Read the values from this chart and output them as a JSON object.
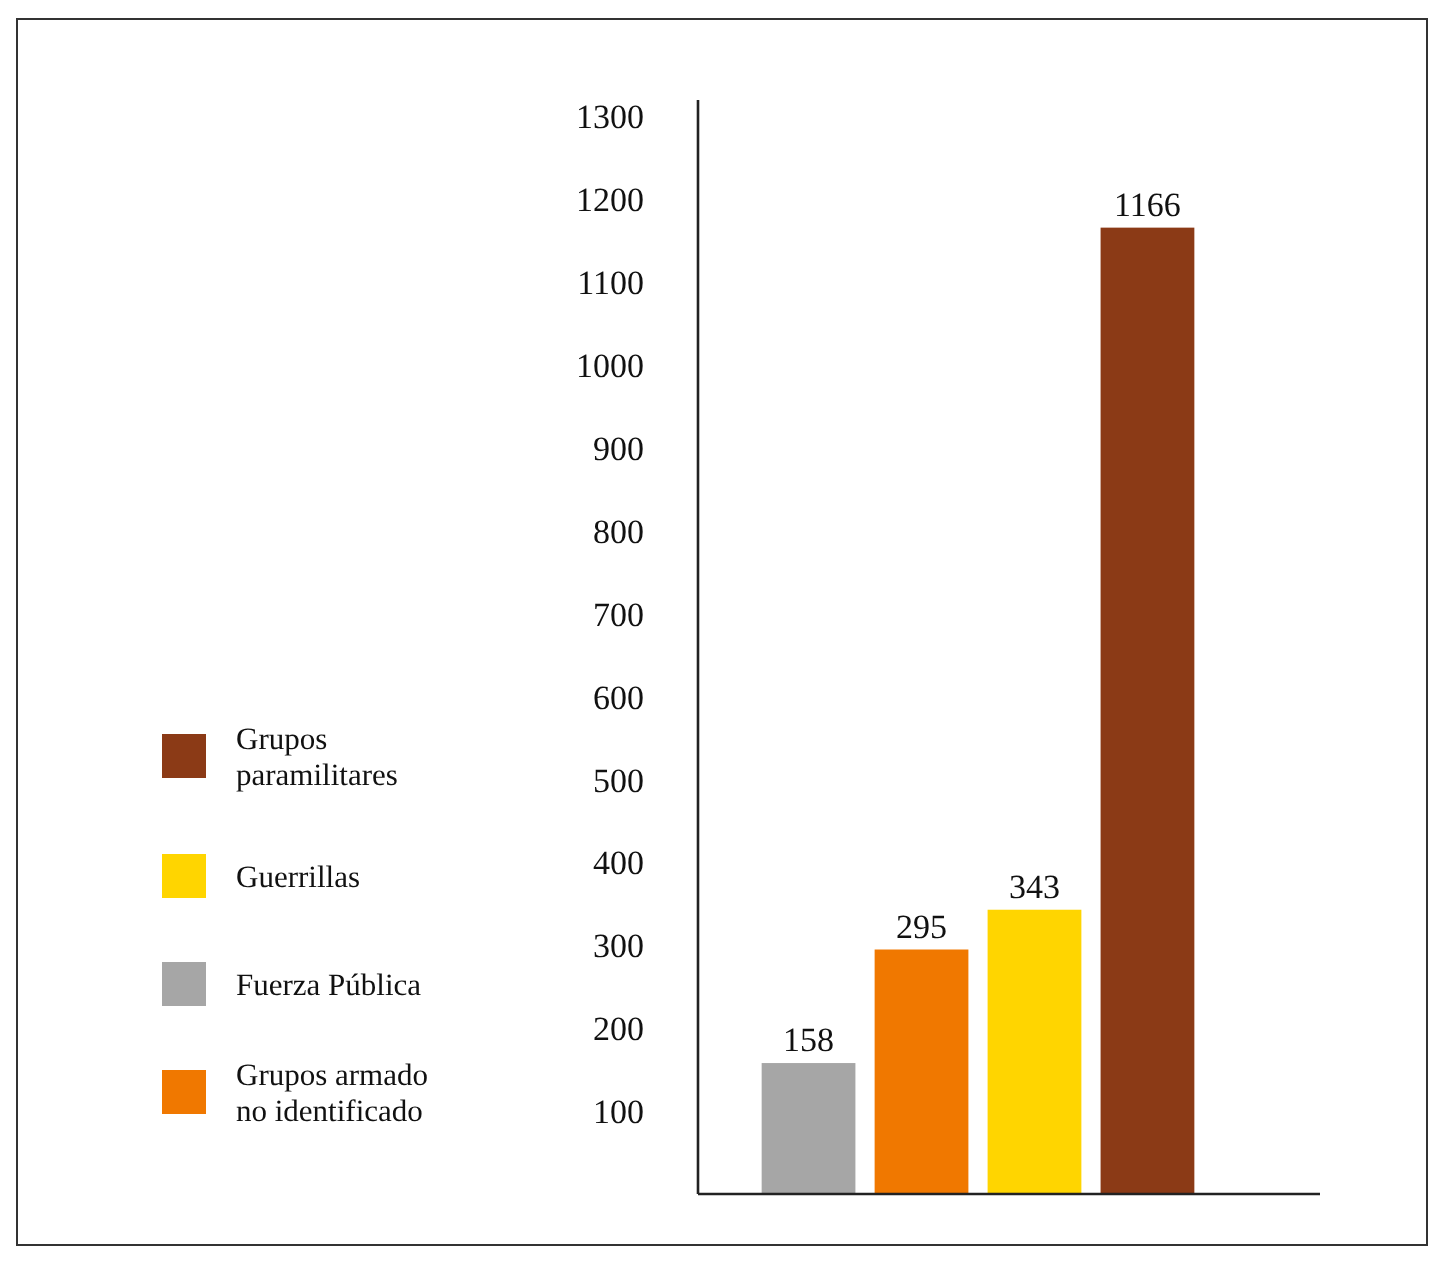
{
  "chart_data": {
    "type": "bar",
    "categories": [
      null,
      null,
      null,
      null
    ],
    "stacked": true,
    "data_labels": true,
    "legend": "left",
    "grid": false,
    "ylim": [
      0,
      1320
    ],
    "yticks": [
      100,
      200,
      300,
      400,
      500,
      600,
      700,
      800,
      900,
      1000,
      1100,
      1200,
      1300
    ],
    "series": [
      {
        "name": "Grupos paramilitares",
        "color": "#8b3a16",
        "values": [
          null,
          null,
          null,
          1166
        ]
      },
      {
        "name": "Guerrillas",
        "color": "#ffd500",
        "values": [
          null,
          null,
          343,
          null
        ]
      },
      {
        "name": "Fuerza Pública",
        "color": "#a6a6a6",
        "values": [
          158,
          null,
          null,
          null
        ]
      },
      {
        "name": "Grupos armado no identificado",
        "color": "#f07800",
        "values": [
          null,
          295,
          null,
          null
        ]
      }
    ]
  }
}
